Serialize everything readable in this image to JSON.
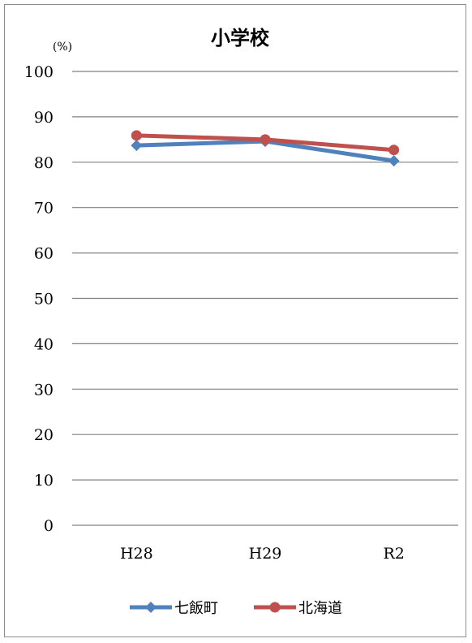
{
  "chart_data": {
    "type": "line",
    "title": "小学校",
    "ylabel": "(%)",
    "xlabel": "",
    "categories": [
      "H28",
      "H29",
      "R2"
    ],
    "ylim": [
      0,
      100
    ],
    "yticks": [
      0,
      10,
      20,
      30,
      40,
      50,
      60,
      70,
      80,
      90,
      100
    ],
    "grid": true,
    "legend_position": "bottom",
    "series": [
      {
        "name": "七飯町",
        "values": [
          83.7,
          84.6,
          80.3
        ],
        "color": "#4f81bd",
        "marker": "diamond"
      },
      {
        "name": "北海道",
        "values": [
          85.9,
          85.0,
          82.7
        ],
        "color": "#c0504d",
        "marker": "circle"
      }
    ]
  }
}
